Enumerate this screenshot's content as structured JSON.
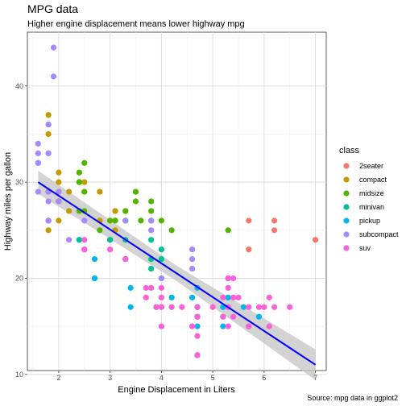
{
  "chart_data": {
    "type": "scatter",
    "title": "MPG data",
    "subtitle": "Higher engine displacement means lower highway mpg",
    "xlabel": "Engine Displacement in Liters",
    "ylabel": "Highway miles per gallon",
    "caption": "Source: mpg data in ggplot2",
    "xlim": [
      1.39,
      7.21
    ],
    "ylim": [
      10.4,
      45.6
    ],
    "xticks": [
      2,
      3,
      4,
      5,
      6,
      7
    ],
    "yticks": [
      10,
      20,
      30,
      40
    ],
    "grid": true,
    "legend": {
      "title": "class",
      "placement": "right"
    },
    "trendline": {
      "type": "linear",
      "color": "#0000ff",
      "band_color": "#c8c8c8",
      "x": [
        1.6,
        7.0
      ],
      "y": [
        30.0,
        11.0
      ],
      "band_halfwidth": [
        1.2,
        0.8,
        1.6
      ]
    },
    "series": [
      {
        "name": "2seater",
        "color": "#F8766D",
        "points": [
          [
            5.7,
            26
          ],
          [
            5.7,
            23
          ],
          [
            6.2,
            26
          ],
          [
            6.2,
            25
          ],
          [
            7.0,
            24
          ]
        ]
      },
      {
        "name": "compact",
        "color": "#C49A00",
        "points": [
          [
            1.8,
            29
          ],
          [
            1.8,
            29
          ],
          [
            2.0,
            31
          ],
          [
            2.0,
            30
          ],
          [
            2.8,
            26
          ],
          [
            2.8,
            26
          ],
          [
            3.1,
            27
          ],
          [
            1.8,
            26
          ],
          [
            1.8,
            25
          ],
          [
            2.0,
            28
          ],
          [
            2.0,
            29
          ],
          [
            2.8,
            26
          ],
          [
            2.8,
            29
          ],
          [
            3.1,
            25
          ],
          [
            3.1,
            27
          ],
          [
            3.3,
            27
          ],
          [
            2.4,
            31
          ],
          [
            2.4,
            27
          ],
          [
            2.2,
            29
          ],
          [
            2.2,
            27
          ],
          [
            1.8,
            37
          ],
          [
            1.8,
            35
          ],
          [
            1.8,
            36
          ],
          [
            1.8,
            33
          ],
          [
            2.0,
            29
          ],
          [
            2.0,
            29
          ],
          [
            2.5,
            30
          ],
          [
            2.5,
            29
          ],
          [
            3.3,
            26
          ],
          [
            3.0,
            24
          ],
          [
            2.4,
            30
          ],
          [
            2.0,
            26
          ],
          [
            2.0,
            28
          ]
        ]
      },
      {
        "name": "midsize",
        "color": "#53B400",
        "points": [
          [
            2.4,
            30
          ],
          [
            2.4,
            31
          ],
          [
            3.1,
            26
          ],
          [
            3.5,
            29
          ],
          [
            3.6,
            26
          ],
          [
            2.4,
            27
          ],
          [
            3.0,
            26
          ],
          [
            3.3,
            26
          ],
          [
            3.5,
            29
          ],
          [
            3.8,
            26
          ],
          [
            3.8,
            27
          ],
          [
            3.8,
            28
          ],
          [
            2.5,
            32
          ],
          [
            2.5,
            27
          ],
          [
            2.5,
            29
          ],
          [
            3.0,
            26
          ],
          [
            3.3,
            27
          ],
          [
            3.5,
            28
          ],
          [
            3.8,
            26
          ],
          [
            4.0,
            26
          ],
          [
            5.3,
            25
          ],
          [
            2.0,
            28
          ],
          [
            2.4,
            30
          ],
          [
            1.8,
            29
          ],
          [
            2.8,
            25
          ],
          [
            3.1,
            26
          ],
          [
            4.2,
            25
          ]
        ]
      },
      {
        "name": "minivan",
        "color": "#00C094",
        "points": [
          [
            2.4,
            24
          ],
          [
            3.0,
            24
          ],
          [
            3.3,
            22
          ],
          [
            3.3,
            22
          ],
          [
            3.3,
            24
          ],
          [
            3.8,
            22
          ],
          [
            3.8,
            21
          ],
          [
            4.0,
            23
          ],
          [
            4.0,
            22
          ],
          [
            3.8,
            24
          ],
          [
            2.4,
            24
          ]
        ]
      },
      {
        "name": "pickup",
        "color": "#00B6EB",
        "points": [
          [
            2.7,
            20
          ],
          [
            2.7,
            22
          ],
          [
            2.7,
            20
          ],
          [
            3.4,
            19
          ],
          [
            3.4,
            17
          ],
          [
            4.0,
            20
          ],
          [
            4.7,
            17
          ],
          [
            4.7,
            17
          ],
          [
            4.7,
            16
          ],
          [
            4.7,
            12
          ],
          [
            5.2,
            17
          ],
          [
            5.2,
            15
          ],
          [
            5.7,
            15
          ],
          [
            5.9,
            16
          ],
          [
            4.7,
            17
          ],
          [
            4.7,
            16
          ],
          [
            4.7,
            19
          ],
          [
            5.2,
            16
          ],
          [
            5.2,
            17
          ],
          [
            5.6,
            17
          ],
          [
            3.9,
            17
          ],
          [
            3.9,
            17
          ],
          [
            4.7,
            15
          ],
          [
            4.7,
            16
          ],
          [
            4.7,
            17
          ],
          [
            4.2,
            17
          ],
          [
            4.2,
            18
          ],
          [
            5.3,
            17
          ],
          [
            5.3,
            18
          ],
          [
            4.6,
            18
          ]
        ]
      },
      {
        "name": "subcompact",
        "color": "#A58AFF",
        "points": [
          [
            1.8,
            29
          ],
          [
            1.8,
            29
          ],
          [
            1.8,
            26
          ],
          [
            1.8,
            28
          ],
          [
            1.6,
            33
          ],
          [
            1.6,
            32
          ],
          [
            1.6,
            32
          ],
          [
            1.6,
            29
          ],
          [
            1.6,
            32
          ],
          [
            1.6,
            34
          ],
          [
            1.8,
            36
          ],
          [
            1.8,
            36
          ],
          [
            1.8,
            29
          ],
          [
            1.8,
            26
          ],
          [
            1.9,
            44
          ],
          [
            1.9,
            41
          ],
          [
            1.8,
            33
          ],
          [
            2.0,
            29
          ],
          [
            2.0,
            28
          ],
          [
            2.5,
            26
          ],
          [
            2.5,
            26
          ],
          [
            3.8,
            26
          ],
          [
            3.8,
            25
          ],
          [
            4.6,
            23
          ],
          [
            4.6,
            22
          ],
          [
            5.4,
            18
          ],
          [
            4.0,
            20
          ],
          [
            4.0,
            20
          ],
          [
            3.3,
            26
          ],
          [
            4.6,
            21
          ],
          [
            2.2,
            24
          ]
        ]
      },
      {
        "name": "suv",
        "color": "#FB61D7",
        "points": [
          [
            5.3,
            20
          ],
          [
            5.3,
            15
          ],
          [
            5.3,
            20
          ],
          [
            5.7,
            17
          ],
          [
            6.0,
            17
          ],
          [
            5.7,
            15
          ],
          [
            6.5,
            17
          ],
          [
            3.7,
            19
          ],
          [
            3.7,
            18
          ],
          [
            3.9,
            17
          ],
          [
            4.7,
            17
          ],
          [
            4.7,
            12
          ],
          [
            5.2,
            16
          ],
          [
            5.2,
            18
          ],
          [
            5.7,
            15
          ],
          [
            5.9,
            17
          ],
          [
            4.7,
            16
          ],
          [
            4.7,
            16
          ],
          [
            4.7,
            12
          ],
          [
            5.7,
            15
          ],
          [
            6.1,
            18
          ],
          [
            5.3,
            17
          ],
          [
            5.4,
            18
          ],
          [
            4.0,
            17
          ],
          [
            4.0,
            15
          ],
          [
            4.0,
            19
          ],
          [
            4.6,
            15
          ],
          [
            5.0,
            17
          ],
          [
            5.4,
            16
          ],
          [
            6.2,
            17
          ],
          [
            2.5,
            23
          ],
          [
            2.5,
            24
          ],
          [
            2.5,
            23
          ],
          [
            3.0,
            23
          ],
          [
            3.3,
            22
          ],
          [
            4.2,
            17
          ],
          [
            4.7,
            14
          ],
          [
            5.3,
            19
          ],
          [
            5.7,
            17
          ],
          [
            6.1,
            15
          ],
          [
            5.4,
            20
          ],
          [
            4.4,
            17
          ],
          [
            5.5,
            18
          ],
          [
            3.8,
            19
          ],
          [
            4.0,
            17
          ],
          [
            4.0,
            18
          ],
          [
            4.6,
            15
          ]
        ]
      }
    ]
  }
}
